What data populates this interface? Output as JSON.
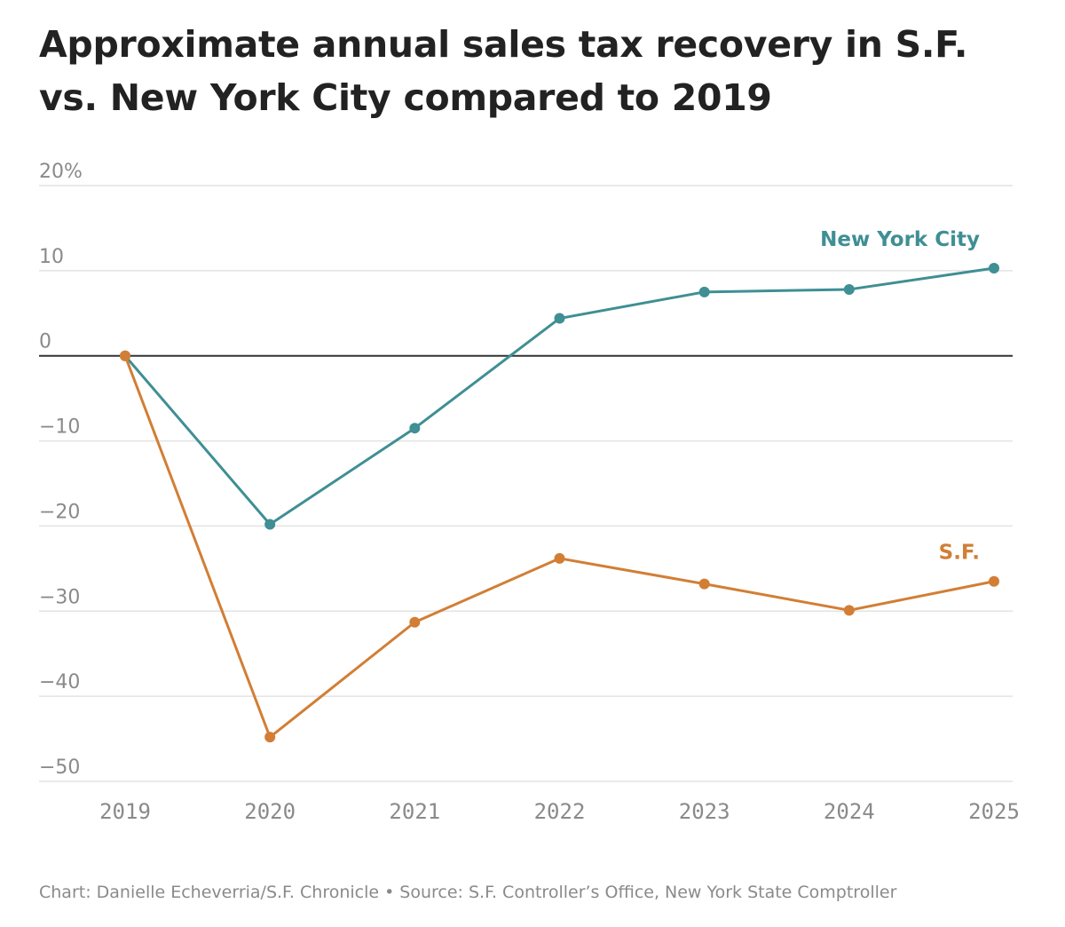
{
  "chart_data": {
    "type": "line",
    "title": "Approximate annual sales tax recovery in S.F. vs. New York City compared to 2019",
    "xlabel": "",
    "ylabel": "",
    "x": [
      "2019",
      "2020",
      "2021",
      "2022",
      "2023",
      "2024",
      "2025"
    ],
    "ylim": [
      -50,
      20
    ],
    "yticks": [
      20,
      10,
      0,
      -10,
      -20,
      -30,
      -40,
      -50
    ],
    "ytick_labels": [
      "20%",
      "10",
      "0",
      "−10",
      "−20",
      "−30",
      "−40",
      "−50"
    ],
    "grid": true,
    "zero_line": true,
    "series": [
      {
        "name": "New York City",
        "color": "#3f8f94",
        "values": [
          0,
          -19.8,
          -8.5,
          4.4,
          7.5,
          7.8,
          10.3
        ]
      },
      {
        "name": "S.F.",
        "color": "#d27e35",
        "values": [
          0,
          -44.8,
          -31.3,
          -23.8,
          -26.8,
          -29.9,
          -26.5
        ]
      }
    ],
    "colors": {
      "grid": "#e3e3e3",
      "zero": "#333333",
      "tick_text": "#8a8a8a"
    }
  },
  "credit": {
    "chart": "Chart: Danielle Echeverria/S.F. Chronicle",
    "separator": "•",
    "source": "Source: S.F. Controller’s Office, New York State Comptroller"
  }
}
